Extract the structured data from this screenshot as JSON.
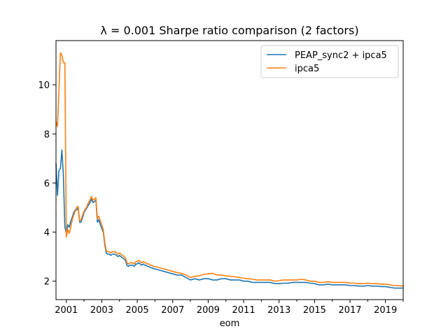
{
  "chart_data": {
    "type": "line",
    "title": "λ = 0.001   Sharpe ratio comparison (2 factors)",
    "xlabel": "eom",
    "ylabel": "",
    "xlim": [
      "2000-06",
      "2020-01"
    ],
    "ylim": [
      1.25,
      11.8
    ],
    "x_ticks": [
      "2001",
      "2003",
      "2005",
      "2007",
      "2009",
      "2011",
      "2013",
      "2015",
      "2017",
      "2019"
    ],
    "y_ticks": [
      "2",
      "4",
      "6",
      "8",
      "10"
    ],
    "grid": false,
    "legend_position": "top-right",
    "series": [
      {
        "name": "PEAP_sync2 + ipca5",
        "color": "#1f77b4",
        "points": [
          [
            "2000-06",
            6.8
          ],
          [
            "2000-07",
            5.5
          ],
          [
            "2000-08",
            6.5
          ],
          [
            "2000-09",
            6.6
          ],
          [
            "2000-10",
            7.35
          ],
          [
            "2000-11",
            6.3
          ],
          [
            "2000-12",
            4.2
          ],
          [
            "2001-01",
            3.95
          ],
          [
            "2001-02",
            4.3
          ],
          [
            "2001-03",
            4.2
          ],
          [
            "2001-04",
            4.45
          ],
          [
            "2001-05",
            4.6
          ],
          [
            "2001-06",
            4.8
          ],
          [
            "2001-07",
            4.9
          ],
          [
            "2001-08",
            4.9
          ],
          [
            "2001-09",
            5.0
          ],
          [
            "2001-10",
            4.4
          ],
          [
            "2001-11",
            4.4
          ],
          [
            "2001-12",
            4.6
          ],
          [
            "2002-01",
            4.8
          ],
          [
            "2002-02",
            4.9
          ],
          [
            "2002-03",
            5.0
          ],
          [
            "2002-04",
            5.1
          ],
          [
            "2002-05",
            5.2
          ],
          [
            "2002-06",
            5.35
          ],
          [
            "2002-07",
            5.2
          ],
          [
            "2002-08",
            5.25
          ],
          [
            "2002-09",
            5.3
          ],
          [
            "2002-10",
            4.4
          ],
          [
            "2002-11",
            4.5
          ],
          [
            "2002-12",
            4.3
          ],
          [
            "2003-01",
            4.15
          ],
          [
            "2003-02",
            4.0
          ],
          [
            "2003-03",
            3.5
          ],
          [
            "2003-04",
            3.15
          ],
          [
            "2003-05",
            3.1
          ],
          [
            "2003-06",
            3.1
          ],
          [
            "2003-07",
            3.05
          ],
          [
            "2003-08",
            3.1
          ],
          [
            "2003-09",
            3.1
          ],
          [
            "2003-10",
            3.1
          ],
          [
            "2003-11",
            3.05
          ],
          [
            "2003-12",
            3.0
          ],
          [
            "2004-01",
            3.05
          ],
          [
            "2004-02",
            3.0
          ],
          [
            "2004-03",
            2.95
          ],
          [
            "2004-04",
            2.9
          ],
          [
            "2004-05",
            2.85
          ],
          [
            "2004-06",
            2.65
          ],
          [
            "2004-07",
            2.6
          ],
          [
            "2004-08",
            2.65
          ],
          [
            "2004-09",
            2.65
          ],
          [
            "2004-10",
            2.65
          ],
          [
            "2004-11",
            2.6
          ],
          [
            "2004-12",
            2.7
          ],
          [
            "2005-01",
            2.7
          ],
          [
            "2005-02",
            2.75
          ],
          [
            "2005-03",
            2.7
          ],
          [
            "2005-04",
            2.65
          ],
          [
            "2005-05",
            2.7
          ],
          [
            "2005-06",
            2.65
          ],
          [
            "2005-07",
            2.65
          ],
          [
            "2005-08",
            2.6
          ],
          [
            "2005-09",
            2.6
          ],
          [
            "2005-10",
            2.55
          ],
          [
            "2005-11",
            2.55
          ],
          [
            "2005-12",
            2.5
          ],
          [
            "2006-01",
            2.5
          ],
          [
            "2006-04",
            2.45
          ],
          [
            "2006-07",
            2.4
          ],
          [
            "2006-10",
            2.35
          ],
          [
            "2007-01",
            2.3
          ],
          [
            "2007-04",
            2.25
          ],
          [
            "2007-07",
            2.25
          ],
          [
            "2007-10",
            2.15
          ],
          [
            "2008-01",
            2.05
          ],
          [
            "2008-04",
            2.1
          ],
          [
            "2008-07",
            2.05
          ],
          [
            "2008-10",
            2.1
          ],
          [
            "2009-01",
            2.1
          ],
          [
            "2009-04",
            2.05
          ],
          [
            "2009-07",
            2.05
          ],
          [
            "2009-10",
            2.1
          ],
          [
            "2010-01",
            2.1
          ],
          [
            "2010-04",
            2.05
          ],
          [
            "2010-07",
            2.05
          ],
          [
            "2010-10",
            2.05
          ],
          [
            "2011-01",
            2.0
          ],
          [
            "2011-04",
            2.0
          ],
          [
            "2011-07",
            1.95
          ],
          [
            "2011-10",
            1.95
          ],
          [
            "2012-01",
            1.95
          ],
          [
            "2012-04",
            1.95
          ],
          [
            "2012-07",
            1.95
          ],
          [
            "2012-10",
            1.9
          ],
          [
            "2013-01",
            1.9
          ],
          [
            "2013-04",
            1.92
          ],
          [
            "2013-07",
            1.92
          ],
          [
            "2013-10",
            1.95
          ],
          [
            "2014-01",
            1.95
          ],
          [
            "2014-04",
            1.95
          ],
          [
            "2014-07",
            1.95
          ],
          [
            "2014-10",
            1.92
          ],
          [
            "2015-01",
            1.9
          ],
          [
            "2015-04",
            1.85
          ],
          [
            "2015-07",
            1.85
          ],
          [
            "2015-10",
            1.88
          ],
          [
            "2016-01",
            1.85
          ],
          [
            "2016-04",
            1.85
          ],
          [
            "2016-07",
            1.85
          ],
          [
            "2016-10",
            1.85
          ],
          [
            "2017-01",
            1.82
          ],
          [
            "2017-04",
            1.82
          ],
          [
            "2017-07",
            1.8
          ],
          [
            "2017-10",
            1.8
          ],
          [
            "2018-01",
            1.82
          ],
          [
            "2018-04",
            1.8
          ],
          [
            "2018-07",
            1.8
          ],
          [
            "2018-10",
            1.78
          ],
          [
            "2019-01",
            1.78
          ],
          [
            "2019-04",
            1.75
          ],
          [
            "2019-07",
            1.72
          ],
          [
            "2019-10",
            1.72
          ],
          [
            "2020-01",
            1.72
          ]
        ]
      },
      {
        "name": "ipca5",
        "color": "#ff7f0e",
        "points": [
          [
            "2000-06",
            8.5
          ],
          [
            "2000-07",
            8.3
          ],
          [
            "2000-08",
            9.8
          ],
          [
            "2000-09",
            11.3
          ],
          [
            "2000-10",
            11.2
          ],
          [
            "2000-11",
            10.9
          ],
          [
            "2000-12",
            10.9
          ],
          [
            "2001-01",
            3.8
          ],
          [
            "2001-02",
            4.1
          ],
          [
            "2001-03",
            3.95
          ],
          [
            "2001-04",
            4.2
          ],
          [
            "2001-05",
            4.5
          ],
          [
            "2001-06",
            4.7
          ],
          [
            "2001-07",
            4.85
          ],
          [
            "2001-08",
            5.0
          ],
          [
            "2001-09",
            5.05
          ],
          [
            "2001-10",
            4.45
          ],
          [
            "2001-11",
            4.5
          ],
          [
            "2001-12",
            4.7
          ],
          [
            "2002-01",
            4.85
          ],
          [
            "2002-02",
            4.95
          ],
          [
            "2002-03",
            5.05
          ],
          [
            "2002-04",
            5.2
          ],
          [
            "2002-05",
            5.3
          ],
          [
            "2002-06",
            5.45
          ],
          [
            "2002-07",
            5.3
          ],
          [
            "2002-08",
            5.35
          ],
          [
            "2002-09",
            5.4
          ],
          [
            "2002-10",
            4.55
          ],
          [
            "2002-11",
            4.65
          ],
          [
            "2002-12",
            4.45
          ],
          [
            "2003-01",
            4.3
          ],
          [
            "2003-02",
            4.1
          ],
          [
            "2003-03",
            3.6
          ],
          [
            "2003-04",
            3.25
          ],
          [
            "2003-05",
            3.2
          ],
          [
            "2003-06",
            3.2
          ],
          [
            "2003-07",
            3.15
          ],
          [
            "2003-08",
            3.2
          ],
          [
            "2003-09",
            3.2
          ],
          [
            "2003-10",
            3.2
          ],
          [
            "2003-11",
            3.15
          ],
          [
            "2003-12",
            3.1
          ],
          [
            "2004-01",
            3.15
          ],
          [
            "2004-02",
            3.1
          ],
          [
            "2004-03",
            3.05
          ],
          [
            "2004-04",
            3.0
          ],
          [
            "2004-05",
            2.95
          ],
          [
            "2004-06",
            2.75
          ],
          [
            "2004-07",
            2.7
          ],
          [
            "2004-08",
            2.75
          ],
          [
            "2004-09",
            2.75
          ],
          [
            "2004-10",
            2.75
          ],
          [
            "2004-11",
            2.7
          ],
          [
            "2004-12",
            2.8
          ],
          [
            "2005-01",
            2.8
          ],
          [
            "2005-02",
            2.85
          ],
          [
            "2005-03",
            2.8
          ],
          [
            "2005-04",
            2.75
          ],
          [
            "2005-05",
            2.8
          ],
          [
            "2005-06",
            2.75
          ],
          [
            "2005-07",
            2.75
          ],
          [
            "2005-08",
            2.7
          ],
          [
            "2005-09",
            2.7
          ],
          [
            "2005-10",
            2.65
          ],
          [
            "2005-11",
            2.65
          ],
          [
            "2005-12",
            2.6
          ],
          [
            "2006-01",
            2.6
          ],
          [
            "2006-04",
            2.55
          ],
          [
            "2006-07",
            2.5
          ],
          [
            "2006-10",
            2.45
          ],
          [
            "2007-01",
            2.4
          ],
          [
            "2007-04",
            2.35
          ],
          [
            "2007-07",
            2.32
          ],
          [
            "2007-10",
            2.25
          ],
          [
            "2008-01",
            2.15
          ],
          [
            "2008-04",
            2.2
          ],
          [
            "2008-07",
            2.22
          ],
          [
            "2008-10",
            2.28
          ],
          [
            "2009-01",
            2.3
          ],
          [
            "2009-04",
            2.32
          ],
          [
            "2009-07",
            2.25
          ],
          [
            "2009-10",
            2.25
          ],
          [
            "2010-01",
            2.22
          ],
          [
            "2010-04",
            2.2
          ],
          [
            "2010-07",
            2.18
          ],
          [
            "2010-10",
            2.15
          ],
          [
            "2011-01",
            2.12
          ],
          [
            "2011-04",
            2.1
          ],
          [
            "2011-07",
            2.08
          ],
          [
            "2011-10",
            2.05
          ],
          [
            "2012-01",
            2.05
          ],
          [
            "2012-04",
            2.05
          ],
          [
            "2012-07",
            2.05
          ],
          [
            "2012-10",
            2.0
          ],
          [
            "2013-01",
            2.02
          ],
          [
            "2013-04",
            2.05
          ],
          [
            "2013-07",
            2.05
          ],
          [
            "2013-10",
            2.05
          ],
          [
            "2014-01",
            2.05
          ],
          [
            "2014-04",
            2.08
          ],
          [
            "2014-07",
            2.05
          ],
          [
            "2014-10",
            2.0
          ],
          [
            "2015-01",
            2.0
          ],
          [
            "2015-04",
            1.95
          ],
          [
            "2015-07",
            1.95
          ],
          [
            "2015-10",
            1.98
          ],
          [
            "2016-01",
            1.95
          ],
          [
            "2016-04",
            1.95
          ],
          [
            "2016-07",
            1.95
          ],
          [
            "2016-10",
            1.95
          ],
          [
            "2017-01",
            1.92
          ],
          [
            "2017-04",
            1.92
          ],
          [
            "2017-07",
            1.9
          ],
          [
            "2017-10",
            1.9
          ],
          [
            "2018-01",
            1.92
          ],
          [
            "2018-04",
            1.9
          ],
          [
            "2018-07",
            1.9
          ],
          [
            "2018-10",
            1.88
          ],
          [
            "2019-01",
            1.88
          ],
          [
            "2019-04",
            1.85
          ],
          [
            "2019-07",
            1.82
          ],
          [
            "2019-10",
            1.82
          ],
          [
            "2020-01",
            1.8
          ]
        ]
      }
    ]
  }
}
